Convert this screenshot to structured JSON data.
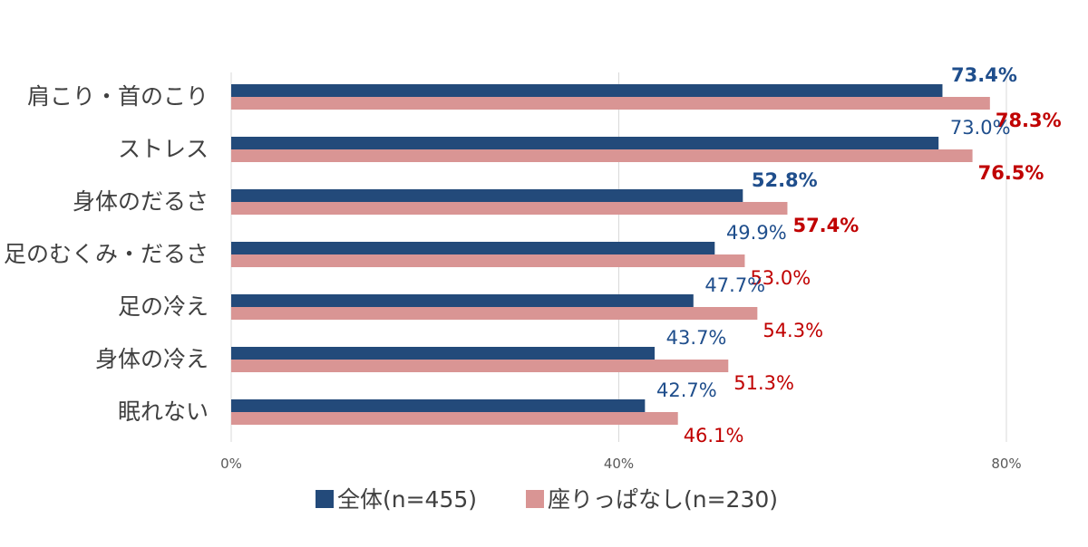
{
  "chart_data": {
    "type": "bar",
    "orientation": "horizontal",
    "title": "",
    "xlabel": "",
    "ylabel": "",
    "categories": [
      "肩こり・首のこり",
      "ストレス",
      "身体のだるさ",
      "足のむくみ・だるさ",
      "足の冷え",
      "身体の冷え",
      "眠れない"
    ],
    "series": [
      {
        "name": "全体(n=455)",
        "color": "#234a7a",
        "label_color": "#1f4e8c",
        "values": [
          73.4,
          73.0,
          52.8,
          49.9,
          47.7,
          43.7,
          42.7
        ],
        "labels": [
          "73.4%",
          "73.0%",
          "52.8%",
          "49.9%",
          "47.7%",
          "43.7%",
          "42.7%"
        ],
        "bold": [
          true,
          false,
          true,
          false,
          false,
          false,
          false
        ]
      },
      {
        "name": "座りっぱなし(n=230)",
        "color": "#d99594",
        "label_color": "#c00000",
        "values": [
          78.3,
          76.5,
          57.4,
          53.0,
          54.3,
          51.3,
          46.1
        ],
        "labels": [
          "78.3%",
          "76.5%",
          "57.4%",
          "53.0%",
          "54.3%",
          "51.3%",
          "46.1%"
        ],
        "bold": [
          true,
          true,
          true,
          false,
          false,
          false,
          false
        ]
      }
    ],
    "xlim": [
      0,
      80
    ],
    "xticks": [
      0,
      40,
      80
    ],
    "xtick_labels": [
      "0%",
      "40%",
      "80%"
    ],
    "grid": true,
    "legend_position": "bottom-center",
    "gridline_color": "#d9d9d9",
    "axis_label_color": "#595959",
    "category_label_color": "#404040"
  }
}
